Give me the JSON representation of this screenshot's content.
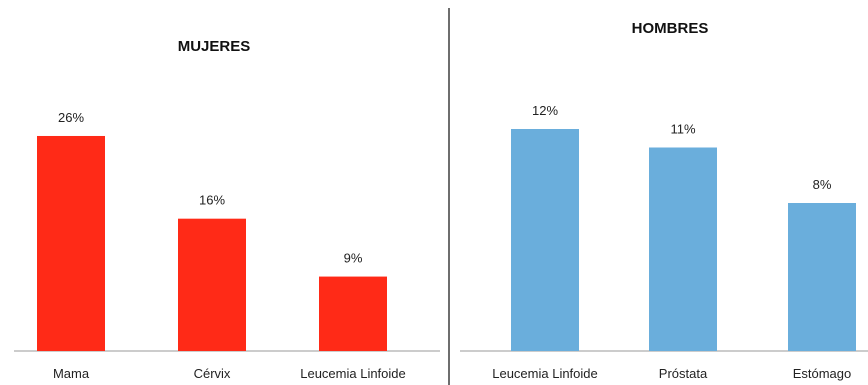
{
  "chart_data": [
    {
      "type": "bar",
      "title": "MUJERES",
      "categories": [
        "Mama",
        "Cérvix",
        "Leucemia Linfoide"
      ],
      "values": [
        26,
        16,
        9
      ],
      "value_labels": [
        "26%",
        "16%",
        "9%"
      ],
      "unit": "%",
      "color": "#ff2a17",
      "ylim": [
        0,
        30
      ],
      "grid": false,
      "legend": "none"
    },
    {
      "type": "bar",
      "title": "HOMBRES",
      "categories": [
        "Leucemia Linfoide",
        "Próstata",
        "Estómago"
      ],
      "values": [
        12,
        11,
        8
      ],
      "value_labels": [
        "12%",
        "11%",
        "8%"
      ],
      "unit": "%",
      "color": "#6aaedc",
      "ylim": [
        0,
        14
      ],
      "grid": false,
      "legend": "none"
    }
  ]
}
